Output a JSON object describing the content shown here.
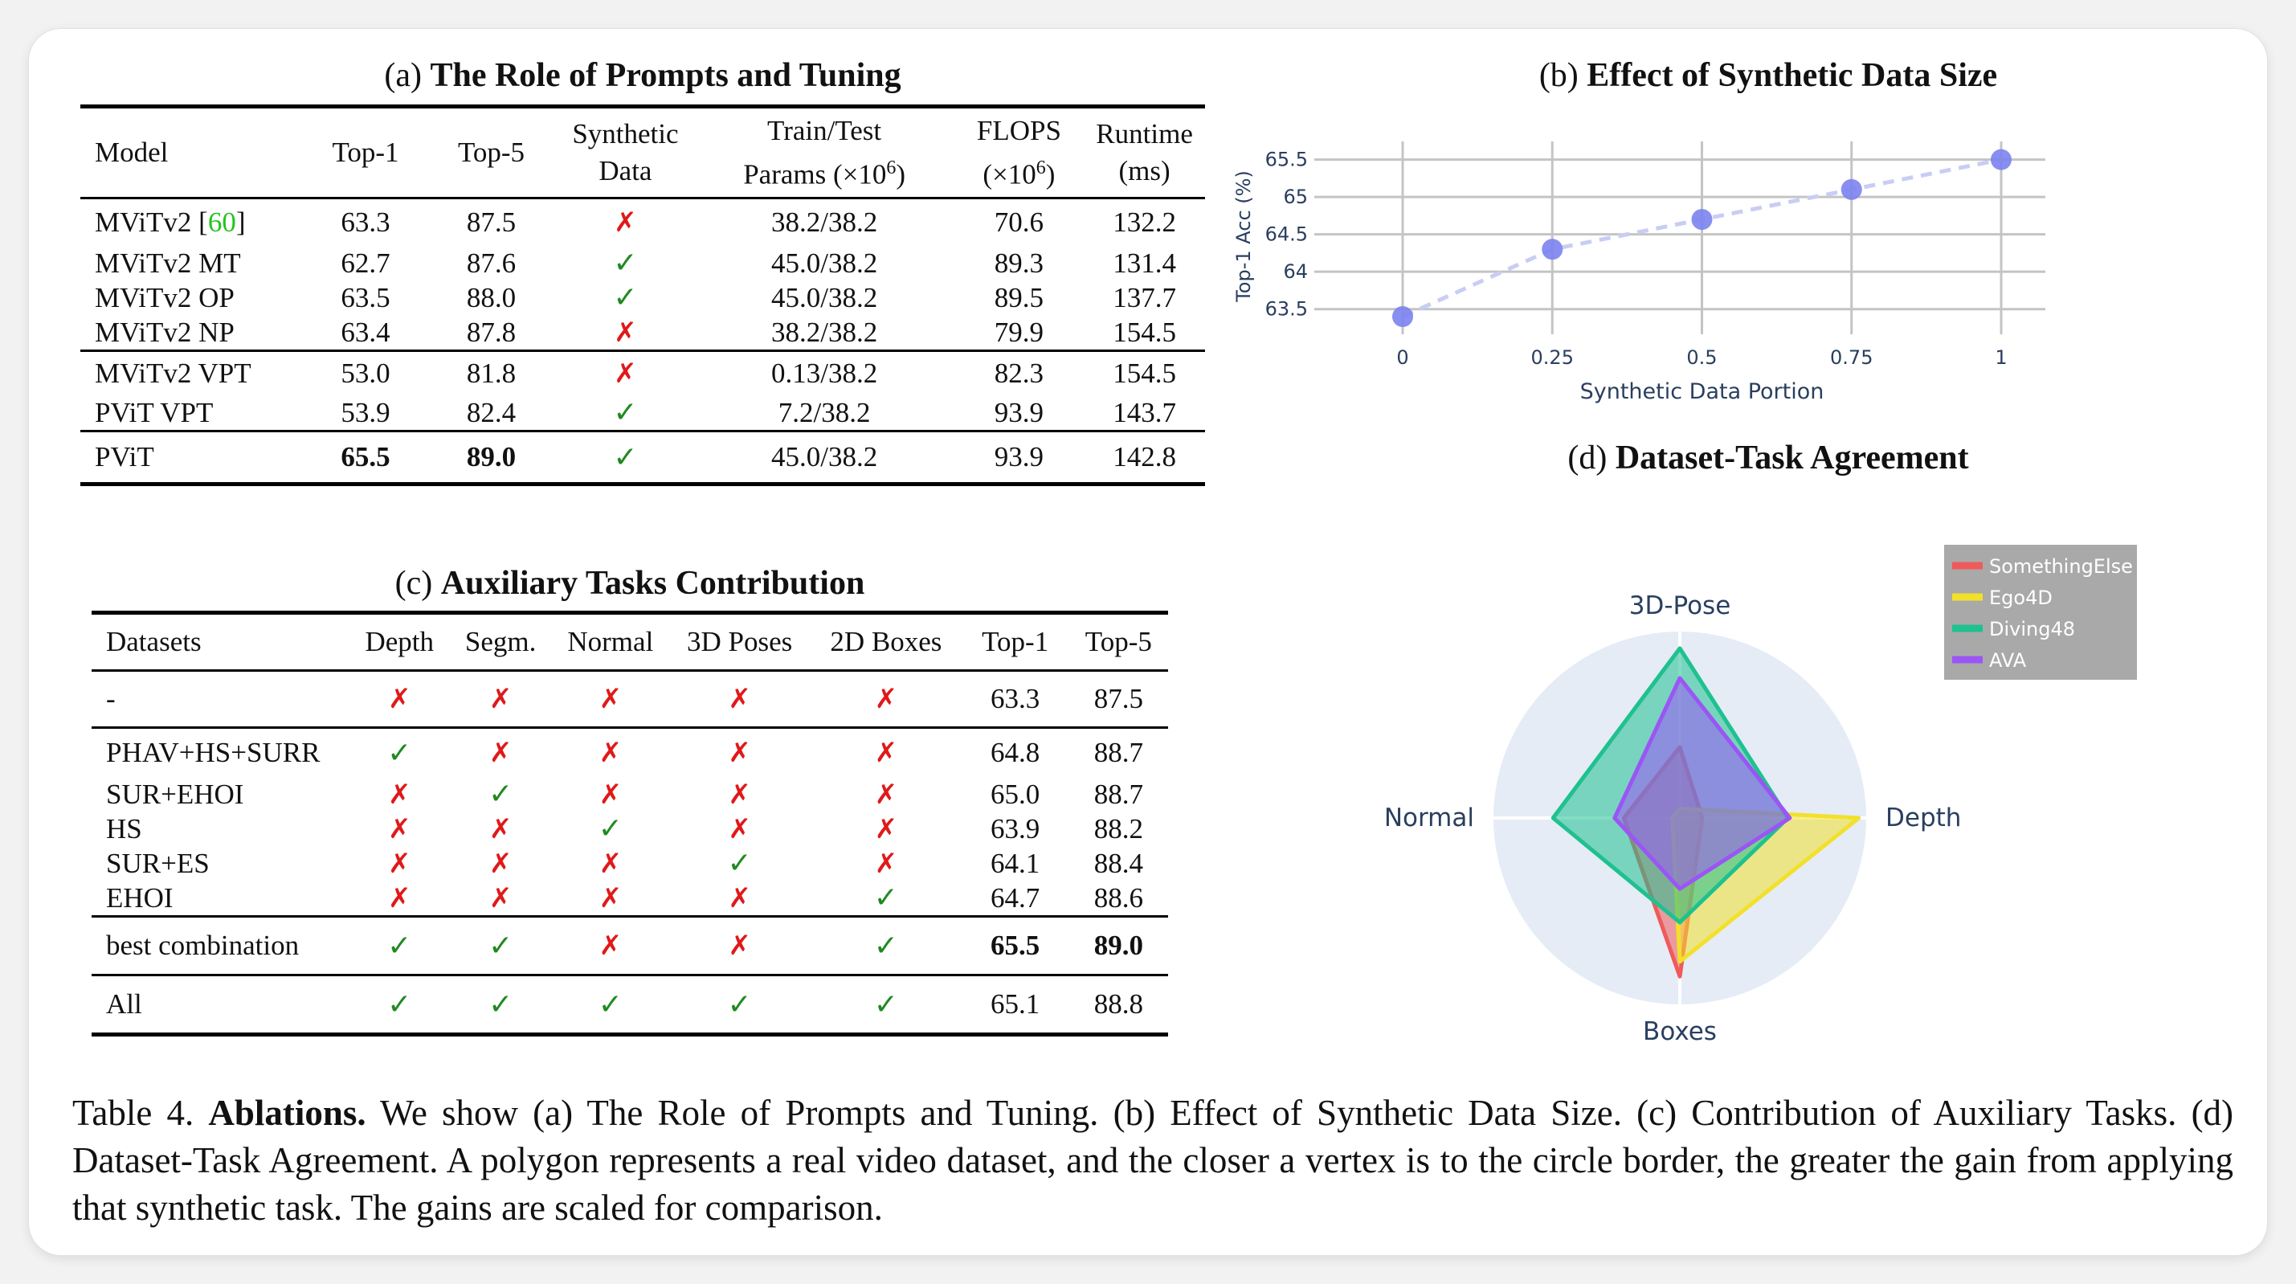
{
  "panel_a": {
    "title_prefix": "(a)",
    "title": "The Role of Prompts and Tuning",
    "header": {
      "model": "Model",
      "top1": "Top-1",
      "top5": "Top-5",
      "synthetic_1": "Synthetic",
      "synthetic_2": "Data",
      "params_1": "Train/Test",
      "params_2a": "Params (×10",
      "params_2_sup": "6",
      "params_2b": ")",
      "flops_1": "FLOPS",
      "flops_2a": "(×10",
      "flops_2_sup": "6",
      "flops_2b": ")",
      "runtime_1": "Runtime",
      "runtime_2": "(ms)"
    },
    "rows": [
      {
        "model": "MViTv2",
        "cite": "60",
        "top1": "63.3",
        "top5": "87.5",
        "synthetic": "✗",
        "params": "38.2/38.2",
        "flops": "70.6",
        "runtime": "132.2"
      },
      {
        "model": "MViTv2 MT",
        "top1": "62.7",
        "top5": "87.6",
        "synthetic": "✓",
        "params": "45.0/38.2",
        "flops": "89.3",
        "runtime": "131.4"
      },
      {
        "model": "MViTv2 OP",
        "top1": "63.5",
        "top5": "88.0",
        "synthetic": "✓",
        "params": "45.0/38.2",
        "flops": "89.5",
        "runtime": "137.7"
      },
      {
        "model": "MViTv2 NP",
        "top1": "63.4",
        "top5": "87.8",
        "synthetic": "✗",
        "params": "38.2/38.2",
        "flops": "79.9",
        "runtime": "154.5"
      },
      {
        "model": "MViTv2 VPT",
        "top1": "53.0",
        "top5": "81.8",
        "synthetic": "✗",
        "params": "0.13/38.2",
        "flops": "82.3",
        "runtime": "154.5"
      },
      {
        "model": "PViT VPT",
        "top1": "53.9",
        "top5": "82.4",
        "synthetic": "✓",
        "params": "7.2/38.2",
        "flops": "93.9",
        "runtime": "143.7"
      },
      {
        "model": "PViT",
        "top1": "65.5",
        "top5": "89.0",
        "synthetic": "✓",
        "params": "45.0/38.2",
        "flops": "93.9",
        "runtime": "142.8"
      }
    ]
  },
  "panel_b": {
    "title_prefix": "(b)",
    "title": "Effect of Synthetic Data Size",
    "chart_data": {
      "type": "line",
      "x": [
        0,
        0.25,
        0.5,
        0.75,
        1
      ],
      "y": [
        63.4,
        64.3,
        64.7,
        65.1,
        65.5
      ],
      "xlabel": "Synthetic Data Portion",
      "ylabel": "Top-1 Acc (%)",
      "xticks": [
        "0",
        "0.25",
        "0.5",
        "0.75",
        "1"
      ],
      "yticks": [
        "63.5",
        "64",
        "64.5",
        "65",
        "65.5"
      ],
      "xlim": [
        0,
        1
      ],
      "ylim": [
        63.4,
        65.55
      ],
      "grid": true,
      "marker_color": "#7b83ef",
      "line_color": "#c9cdf5",
      "line_style": "dashed"
    }
  },
  "panel_c": {
    "title_prefix": "(c)",
    "title": "Auxiliary Tasks Contribution",
    "header": [
      "Datasets",
      "Depth",
      "Segm.",
      "Normal",
      "3D Poses",
      "2D Boxes",
      "Top-1",
      "Top-5"
    ],
    "rows": [
      {
        "name": "-",
        "marks": [
          "✗",
          "✗",
          "✗",
          "✗",
          "✗"
        ],
        "top1": "63.3",
        "top5": "87.5"
      },
      {
        "name": "PHAV+HS+SURR",
        "marks": [
          "✓",
          "✗",
          "✗",
          "✗",
          "✗"
        ],
        "top1": "64.8",
        "top5": "88.7"
      },
      {
        "name": "SUR+EHOI",
        "marks": [
          "✗",
          "✓",
          "✗",
          "✗",
          "✗"
        ],
        "top1": "65.0",
        "top5": "88.7"
      },
      {
        "name": "HS",
        "marks": [
          "✗",
          "✗",
          "✓",
          "✗",
          "✗"
        ],
        "top1": "63.9",
        "top5": "88.2"
      },
      {
        "name": "SUR+ES",
        "marks": [
          "✗",
          "✗",
          "✗",
          "✓",
          "✗"
        ],
        "top1": "64.1",
        "top5": "88.4"
      },
      {
        "name": "EHOI",
        "marks": [
          "✗",
          "✗",
          "✗",
          "✗",
          "✓"
        ],
        "top1": "64.7",
        "top5": "88.6"
      },
      {
        "name": "best combination",
        "marks": [
          "✓",
          "✓",
          "✗",
          "✗",
          "✓"
        ],
        "top1": "65.5",
        "top5": "89.0"
      },
      {
        "name": "All",
        "marks": [
          "✓",
          "✓",
          "✓",
          "✓",
          "✓"
        ],
        "top1": "65.1",
        "top5": "88.8"
      }
    ]
  },
  "panel_d": {
    "title_prefix": "(d)",
    "title": "Dataset-Task Agreement",
    "chart_data": {
      "type": "radar",
      "axes": [
        "Depth",
        "3D-Pose",
        "Normal",
        "Boxes"
      ],
      "range": [
        0,
        1
      ],
      "series": [
        {
          "name": "SomethingElse",
          "values": [
            0.12,
            0.38,
            0.3,
            0.85
          ],
          "color": "#ef5a5a"
        },
        {
          "name": "Ego4D",
          "values": [
            0.96,
            0.05,
            0.04,
            0.77
          ],
          "color": "#f2e02b"
        },
        {
          "name": "Diving48",
          "values": [
            0.58,
            0.91,
            0.68,
            0.56
          ],
          "color": "#1fc18f"
        },
        {
          "name": "AVA",
          "values": [
            0.59,
            0.75,
            0.35,
            0.38
          ],
          "color": "#9b55f5"
        }
      ],
      "legend_position": "top-right"
    }
  },
  "caption": {
    "label": "Table 4.",
    "bold": "Ablations.",
    "text": "We show (a) The Role of Prompts and Tuning. (b) Effect of Synthetic Data Size. (c) Contribution of Auxiliary Tasks. (d) Dataset-Task Agreement. A polygon represents a real video dataset, and the closer a vertex is to the circle border, the greater the gain from applying that synthetic task. The gains are scaled for comparison."
  }
}
